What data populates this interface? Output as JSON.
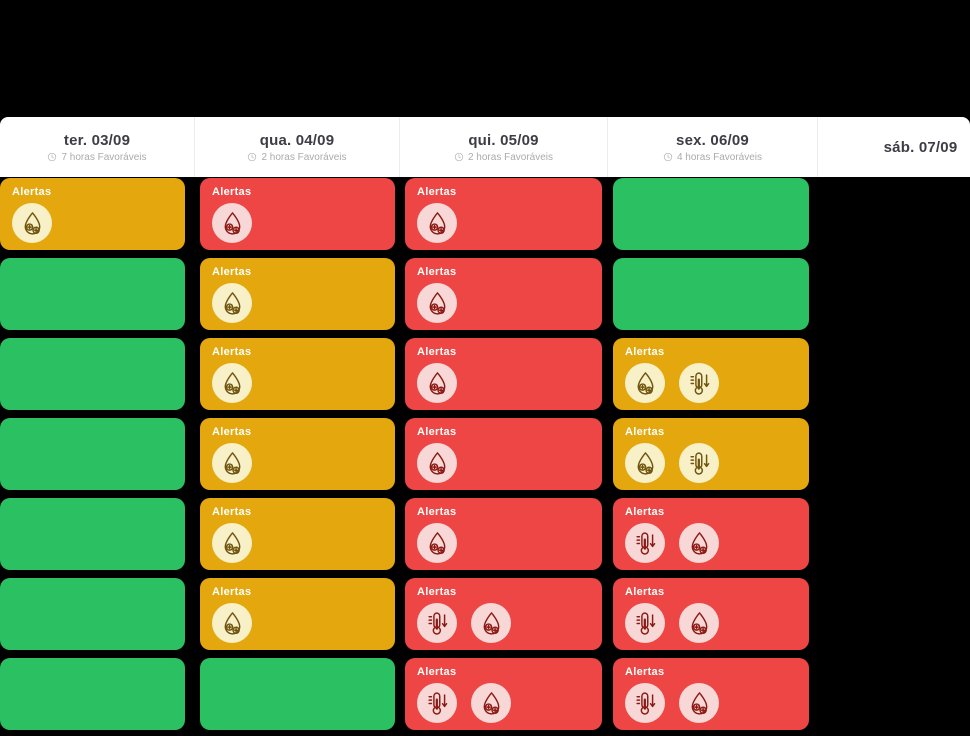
{
  "labels": {
    "alert_label": "Alertas"
  },
  "status_styles": {
    "favorable": {
      "card": "#2bc162"
    },
    "warning": {
      "card": "#e4a80e",
      "icon_bg": "#f8f0c6",
      "icon_fg": "#6f5510"
    },
    "unfavorable": {
      "card": "#ee4645",
      "icon_bg": "#f8d8d6",
      "icon_fg": "#8c1a15"
    }
  },
  "icon_names": {
    "humidity": "humidity-drop-icon",
    "low-temp": "low-temperature-icon"
  },
  "columns": [
    {
      "day": "ter. 03/09",
      "favorable_hours": "7 horas Favoráveis",
      "cards": [
        {
          "status": "warning",
          "alerts": [
            "humidity"
          ]
        },
        {
          "status": "favorable",
          "alerts": []
        },
        {
          "status": "favorable",
          "alerts": []
        },
        {
          "status": "favorable",
          "alerts": []
        },
        {
          "status": "favorable",
          "alerts": []
        },
        {
          "status": "favorable",
          "alerts": []
        },
        {
          "status": "favorable",
          "alerts": []
        }
      ]
    },
    {
      "day": "qua. 04/09",
      "favorable_hours": "2 horas Favoráveis",
      "cards": [
        {
          "status": "unfavorable",
          "alerts": [
            "humidity"
          ]
        },
        {
          "status": "warning",
          "alerts": [
            "humidity"
          ]
        },
        {
          "status": "warning",
          "alerts": [
            "humidity"
          ]
        },
        {
          "status": "warning",
          "alerts": [
            "humidity"
          ]
        },
        {
          "status": "warning",
          "alerts": [
            "humidity"
          ]
        },
        {
          "status": "warning",
          "alerts": [
            "humidity"
          ]
        },
        {
          "status": "favorable",
          "alerts": []
        }
      ]
    },
    {
      "day": "qui. 05/09",
      "favorable_hours": "2 horas Favoráveis",
      "cards": [
        {
          "status": "unfavorable",
          "alerts": [
            "humidity"
          ]
        },
        {
          "status": "unfavorable",
          "alerts": [
            "humidity"
          ]
        },
        {
          "status": "unfavorable",
          "alerts": [
            "humidity"
          ]
        },
        {
          "status": "unfavorable",
          "alerts": [
            "humidity"
          ]
        },
        {
          "status": "unfavorable",
          "alerts": [
            "humidity"
          ]
        },
        {
          "status": "unfavorable",
          "alerts": [
            "low-temp",
            "humidity"
          ]
        },
        {
          "status": "unfavorable",
          "alerts": [
            "low-temp",
            "humidity"
          ]
        }
      ]
    },
    {
      "day": "sex. 06/09",
      "favorable_hours": "4 horas Favoráveis",
      "cards": [
        {
          "status": "favorable",
          "alerts": []
        },
        {
          "status": "favorable",
          "alerts": []
        },
        {
          "status": "warning",
          "alerts": [
            "humidity",
            "low-temp"
          ]
        },
        {
          "status": "warning",
          "alerts": [
            "humidity",
            "low-temp"
          ]
        },
        {
          "status": "unfavorable",
          "alerts": [
            "low-temp",
            "humidity"
          ]
        },
        {
          "status": "unfavorable",
          "alerts": [
            "low-temp",
            "humidity"
          ]
        },
        {
          "status": "unfavorable",
          "alerts": [
            "low-temp",
            "humidity"
          ]
        }
      ]
    },
    {
      "day": "sáb. 07/09",
      "favorable_hours": "",
      "cards": []
    }
  ]
}
